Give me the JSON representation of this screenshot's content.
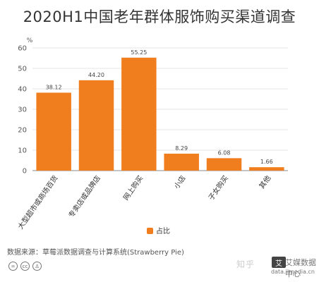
{
  "chart_data": {
    "type": "bar",
    "title": "2020H1中国老年群体服饰购买渠道调查",
    "ylabel": "%",
    "ylim": [
      0,
      60
    ],
    "yticks": [
      0,
      10,
      20,
      30,
      40,
      50,
      60
    ],
    "categories": [
      "大型超市或商场百货",
      "专卖店或品牌店",
      "网上购买",
      "小店",
      "子女购买",
      "其他"
    ],
    "series": [
      {
        "name": "占比",
        "values": [
          38.12,
          44.2,
          55.25,
          8.29,
          6.08,
          1.66
        ],
        "color": "#F07D1E"
      }
    ],
    "grid": true,
    "legend_position": "bottom-center"
  },
  "source": "数据来源：草莓派数据调查与计算系统(Strawberry Pie)",
  "watermark": {
    "site": "知乎",
    "brand": "艾媒数据中心",
    "url": "data.iimedia.cn"
  },
  "icons": [
    "equals-icon",
    "cc-icon",
    "person-icon"
  ]
}
